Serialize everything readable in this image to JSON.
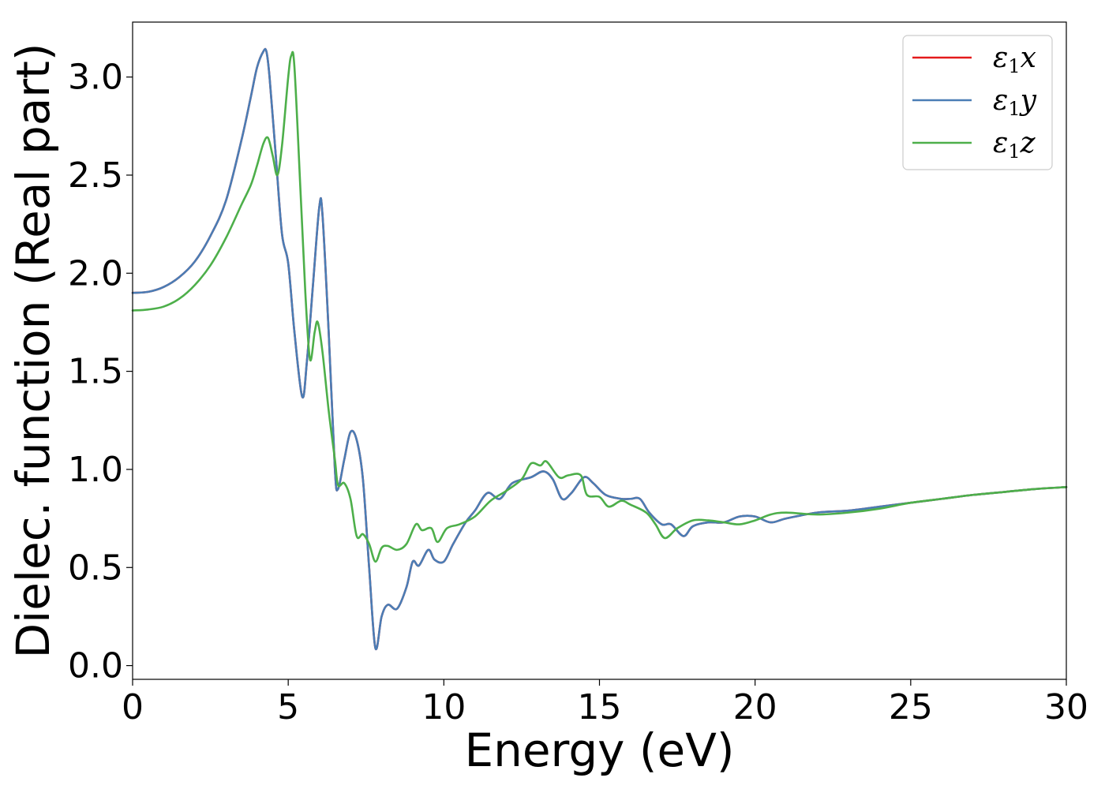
{
  "chart_data": {
    "type": "line",
    "title": "",
    "xlabel": "Energy (eV)",
    "ylabel": "Dielec. function (Real part)",
    "xlim": [
      0,
      30
    ],
    "ylim": [
      -0.07,
      3.28
    ],
    "xticks": [
      0,
      5,
      10,
      15,
      20,
      25,
      30
    ],
    "xtick_labels": [
      "0",
      "5",
      "10",
      "15",
      "20",
      "25",
      "30"
    ],
    "yticks": [
      0.0,
      0.5,
      1.0,
      1.5,
      2.0,
      2.5,
      3.0
    ],
    "ytick_labels": [
      "0.0",
      "0.5",
      "1.0",
      "1.5",
      "2.0",
      "2.5",
      "3.0"
    ],
    "grid": false,
    "legend_position": "top-right",
    "series": [
      {
        "name": "ε1x",
        "legend_base": "ε",
        "legend_sub": "1",
        "legend_var": "x",
        "color": "#e41a1c",
        "x": [
          0,
          0.5,
          1,
          1.5,
          2,
          2.5,
          3,
          3.5,
          3.8,
          4.0,
          4.2,
          4.3,
          4.4,
          4.6,
          4.8,
          5.0,
          5.2,
          5.45,
          5.6,
          5.8,
          6.0,
          6.1,
          6.3,
          6.5,
          6.6,
          6.8,
          7.0,
          7.2,
          7.4,
          7.6,
          7.8,
          8.0,
          8.2,
          8.5,
          8.8,
          9.0,
          9.2,
          9.5,
          9.7,
          10.0,
          10.3,
          10.7,
          11.0,
          11.4,
          11.8,
          12.2,
          12.8,
          13.2,
          13.5,
          13.8,
          14.1,
          14.5,
          14.8,
          15.2,
          15.7,
          16.0,
          16.3,
          16.6,
          17.0,
          17.3,
          17.7,
          18.0,
          18.5,
          19.0,
          19.5,
          20.0,
          20.5,
          21.0,
          22.0,
          23.0,
          24.0,
          25.0,
          26.0,
          27.0,
          28.0,
          29.0,
          30.0
        ],
        "values": [
          1.9,
          1.905,
          1.93,
          1.98,
          2.06,
          2.19,
          2.37,
          2.68,
          2.9,
          3.05,
          3.13,
          3.13,
          3.0,
          2.6,
          2.2,
          2.05,
          1.7,
          1.37,
          1.55,
          1.95,
          2.34,
          2.3,
          1.7,
          1.0,
          0.9,
          1.05,
          1.19,
          1.15,
          0.95,
          0.5,
          0.09,
          0.25,
          0.31,
          0.29,
          0.4,
          0.53,
          0.51,
          0.59,
          0.54,
          0.53,
          0.62,
          0.73,
          0.79,
          0.88,
          0.85,
          0.93,
          0.96,
          0.99,
          0.95,
          0.85,
          0.88,
          0.96,
          0.93,
          0.87,
          0.85,
          0.85,
          0.85,
          0.78,
          0.72,
          0.72,
          0.66,
          0.71,
          0.73,
          0.73,
          0.76,
          0.76,
          0.73,
          0.75,
          0.78,
          0.79,
          0.81,
          0.83,
          0.85,
          0.87,
          0.885,
          0.9,
          0.91
        ]
      },
      {
        "name": "ε1y",
        "legend_base": "ε",
        "legend_sub": "1",
        "legend_var": "y",
        "color": "#4a7db5",
        "x": [
          0,
          0.5,
          1,
          1.5,
          2,
          2.5,
          3,
          3.5,
          3.8,
          4.0,
          4.2,
          4.3,
          4.4,
          4.6,
          4.8,
          5.0,
          5.2,
          5.45,
          5.6,
          5.8,
          6.0,
          6.1,
          6.3,
          6.5,
          6.6,
          6.8,
          7.0,
          7.2,
          7.4,
          7.6,
          7.8,
          8.0,
          8.2,
          8.5,
          8.8,
          9.0,
          9.2,
          9.5,
          9.7,
          10.0,
          10.3,
          10.7,
          11.0,
          11.4,
          11.8,
          12.2,
          12.8,
          13.2,
          13.5,
          13.8,
          14.1,
          14.5,
          14.8,
          15.2,
          15.7,
          16.0,
          16.3,
          16.6,
          17.0,
          17.3,
          17.7,
          18.0,
          18.5,
          19.0,
          19.5,
          20.0,
          20.5,
          21.0,
          22.0,
          23.0,
          24.0,
          25.0,
          26.0,
          27.0,
          28.0,
          29.0,
          30.0
        ],
        "values": [
          1.9,
          1.905,
          1.93,
          1.98,
          2.06,
          2.19,
          2.37,
          2.68,
          2.9,
          3.05,
          3.13,
          3.13,
          3.0,
          2.6,
          2.2,
          2.05,
          1.7,
          1.37,
          1.55,
          1.95,
          2.34,
          2.3,
          1.7,
          1.0,
          0.9,
          1.05,
          1.19,
          1.15,
          0.95,
          0.5,
          0.09,
          0.25,
          0.31,
          0.29,
          0.4,
          0.53,
          0.51,
          0.59,
          0.54,
          0.53,
          0.62,
          0.73,
          0.79,
          0.88,
          0.85,
          0.93,
          0.96,
          0.99,
          0.95,
          0.85,
          0.88,
          0.96,
          0.93,
          0.87,
          0.85,
          0.85,
          0.85,
          0.78,
          0.72,
          0.72,
          0.66,
          0.71,
          0.73,
          0.73,
          0.76,
          0.76,
          0.73,
          0.75,
          0.78,
          0.79,
          0.81,
          0.83,
          0.85,
          0.87,
          0.885,
          0.9,
          0.91
        ]
      },
      {
        "name": "ε1z",
        "legend_base": "ε",
        "legend_sub": "1",
        "legend_var": "z",
        "color": "#4daf4a",
        "x": [
          0,
          0.5,
          1,
          1.5,
          2,
          2.5,
          3,
          3.5,
          3.8,
          4.0,
          4.2,
          4.35,
          4.5,
          4.65,
          4.8,
          5.0,
          5.1,
          5.2,
          5.4,
          5.55,
          5.7,
          5.85,
          5.95,
          6.1,
          6.3,
          6.5,
          6.6,
          6.8,
          7.0,
          7.2,
          7.4,
          7.6,
          7.8,
          8.0,
          8.2,
          8.5,
          8.8,
          9.1,
          9.3,
          9.6,
          9.8,
          10.1,
          10.5,
          11.0,
          11.5,
          12.0,
          12.5,
          12.8,
          13.1,
          13.3,
          13.7,
          14.0,
          14.4,
          14.6,
          15.0,
          15.3,
          15.7,
          16.0,
          16.5,
          16.8,
          17.1,
          17.5,
          18.0,
          18.5,
          19.0,
          19.5,
          20.0,
          20.5,
          21.0,
          22.0,
          23.0,
          24.0,
          25.0,
          26.0,
          27.0,
          28.0,
          29.0,
          30.0
        ],
        "values": [
          1.81,
          1.815,
          1.83,
          1.87,
          1.94,
          2.04,
          2.18,
          2.35,
          2.45,
          2.55,
          2.66,
          2.69,
          2.6,
          2.5,
          2.65,
          3.0,
          3.11,
          3.05,
          2.4,
          1.9,
          1.56,
          1.7,
          1.75,
          1.6,
          1.3,
          1.05,
          0.92,
          0.93,
          0.85,
          0.66,
          0.67,
          0.62,
          0.53,
          0.6,
          0.61,
          0.59,
          0.62,
          0.72,
          0.69,
          0.7,
          0.63,
          0.7,
          0.72,
          0.76,
          0.84,
          0.89,
          0.95,
          1.03,
          1.02,
          1.04,
          0.96,
          0.97,
          0.97,
          0.87,
          0.86,
          0.81,
          0.84,
          0.82,
          0.78,
          0.72,
          0.65,
          0.7,
          0.74,
          0.74,
          0.73,
          0.72,
          0.74,
          0.77,
          0.78,
          0.77,
          0.78,
          0.8,
          0.83,
          0.85,
          0.87,
          0.885,
          0.9,
          0.91
        ]
      }
    ]
  }
}
